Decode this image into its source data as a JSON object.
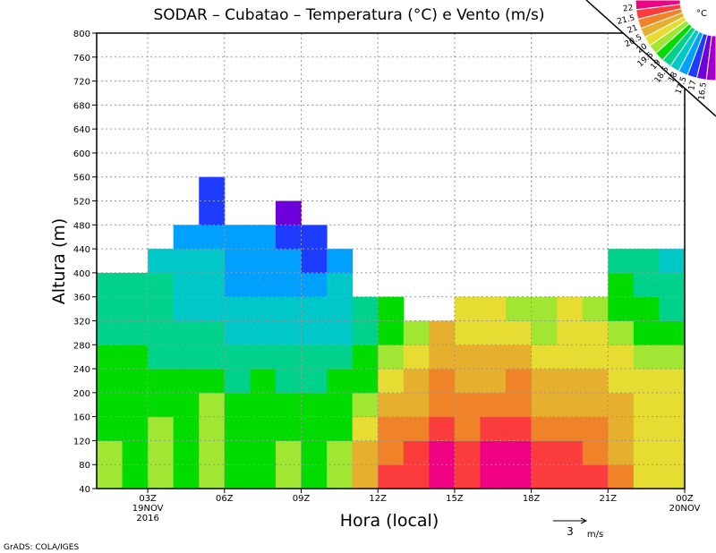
{
  "chart_data": {
    "type": "heatmap",
    "title": "SODAR – Cubatao – Temperatura (°C) e Vento (m/s)",
    "xlabel": "Hora (local)",
    "ylabel": "Altura (m)",
    "xlim_hours": [
      1,
      24
    ],
    "ylim": [
      40,
      800
    ],
    "y_ticks": [
      40,
      80,
      120,
      160,
      200,
      240,
      280,
      320,
      360,
      400,
      440,
      480,
      520,
      560,
      600,
      640,
      680,
      720,
      760,
      800
    ],
    "x_ticks": [
      {
        "hour": 3,
        "label": "03Z",
        "sub1": "19NOV",
        "sub2": "2016"
      },
      {
        "hour": 6,
        "label": "06Z"
      },
      {
        "hour": 9,
        "label": "09Z"
      },
      {
        "hour": 12,
        "label": "12Z"
      },
      {
        "hour": 15,
        "label": "15Z"
      },
      {
        "hour": 18,
        "label": "18Z"
      },
      {
        "hour": 21,
        "label": "21Z"
      },
      {
        "hour": 24,
        "label": "00Z",
        "sub1": "20NOV"
      }
    ],
    "grid": true,
    "row_height_m": 40,
    "columns_start_hour": 1,
    "temperature_columns": [
      [
        19.7,
        19.6,
        19.3,
        19.3,
        19.3,
        19.2,
        18.8,
        18.8,
        18.9
      ],
      [
        19.3,
        19.3,
        19.3,
        19.3,
        19.2,
        19.1,
        18.8,
        18.7,
        18.7
      ],
      [
        19.8,
        19.7,
        19.7,
        19.2,
        19.2,
        18.8,
        18.7,
        18.6,
        18.6,
        18.3
      ],
      [
        19.3,
        19.3,
        19.3,
        19.3,
        19.1,
        18.8,
        18.6,
        18.4,
        18.2,
        18.1,
        17.9
      ],
      [
        19.8,
        19.8,
        19.8,
        19.8,
        19.3,
        18.9,
        18.6,
        18.3,
        18.1,
        18.0,
        17.9,
        17.3,
        17.2
      ],
      [
        19.3,
        19.3,
        19.3,
        19.1,
        18.9,
        18.6,
        18.3,
        18.1,
        17.9,
        17.9,
        17.8
      ],
      [
        19.3,
        19.3,
        19.3,
        19.2,
        19.0,
        18.7,
        18.4,
        18.2,
        17.9,
        17.8,
        17.7
      ],
      [
        19.7,
        19.7,
        19.4,
        19.2,
        18.9,
        18.6,
        18.3,
        18.1,
        17.8,
        17.6,
        17.4,
        16.8
      ],
      [
        19.3,
        19.3,
        19.2,
        19.0,
        18.8,
        18.5,
        18.2,
        18.0,
        17.7,
        17.4,
        17.3
      ],
      [
        19.8,
        19.6,
        19.4,
        19.2,
        19.0,
        18.6,
        18.4,
        18.2,
        18.1,
        17.9
      ],
      [
        20.8,
        20.6,
        20.2,
        19.7,
        19.3,
        19.0,
        18.8,
        18.6
      ],
      [
        21.6,
        21.2,
        21.0,
        20.6,
        20.2,
        19.6,
        19.3,
        19.0
      ],
      [
        21.7,
        21.6,
        21.2,
        20.9,
        20.6,
        20.2,
        19.8
      ],
      [
        22.1,
        22.0,
        21.6,
        21.2,
        21.0,
        20.8,
        20.6
      ],
      [
        21.8,
        21.6,
        21.3,
        21.0,
        20.8,
        20.5,
        20.3,
        20.1
      ],
      [
        22.1,
        22.0,
        21.6,
        21.2,
        20.9,
        20.6,
        20.3,
        20.1
      ],
      [
        22.1,
        22.1,
        21.7,
        21.3,
        21.0,
        20.6,
        20.2,
        19.8
      ],
      [
        21.6,
        21.5,
        21.1,
        20.8,
        20.6,
        20.2,
        19.8,
        19.5
      ],
      [
        21.6,
        21.5,
        21.2,
        20.9,
        20.6,
        20.4,
        20.2,
        20.0
      ],
      [
        21.6,
        21.3,
        21.0,
        20.8,
        20.6,
        20.3,
        20.0,
        19.7
      ],
      [
        21.0,
        20.8,
        20.6,
        20.5,
        20.3,
        20.1,
        19.8,
        19.4,
        19.0,
        18.8
      ],
      [
        20.3,
        20.3,
        20.2,
        20.1,
        20.0,
        19.8,
        19.4,
        19.0,
        18.8,
        18.7
      ],
      [
        20.4,
        20.3,
        20.3,
        20.2,
        20.1,
        19.6,
        19.2,
        18.8,
        18.6,
        18.2
      ]
    ],
    "colorbar": {
      "unit": "°C",
      "levels": [
        16.5,
        17,
        17.5,
        18,
        18.5,
        19,
        19.5,
        20,
        20.5,
        21,
        21.5,
        22
      ],
      "colors": [
        "#a000c8",
        "#6e00dc",
        "#1e3cff",
        "#00a0ff",
        "#00c8c8",
        "#00d28c",
        "#00dc00",
        "#a0e632",
        "#e6dc32",
        "#e6af2d",
        "#f08228",
        "#fa3c3c",
        "#f00082"
      ]
    },
    "wind_reference": {
      "value": "3",
      "unit": "m/s"
    }
  },
  "footer": "GrADS: COLA/IGES"
}
